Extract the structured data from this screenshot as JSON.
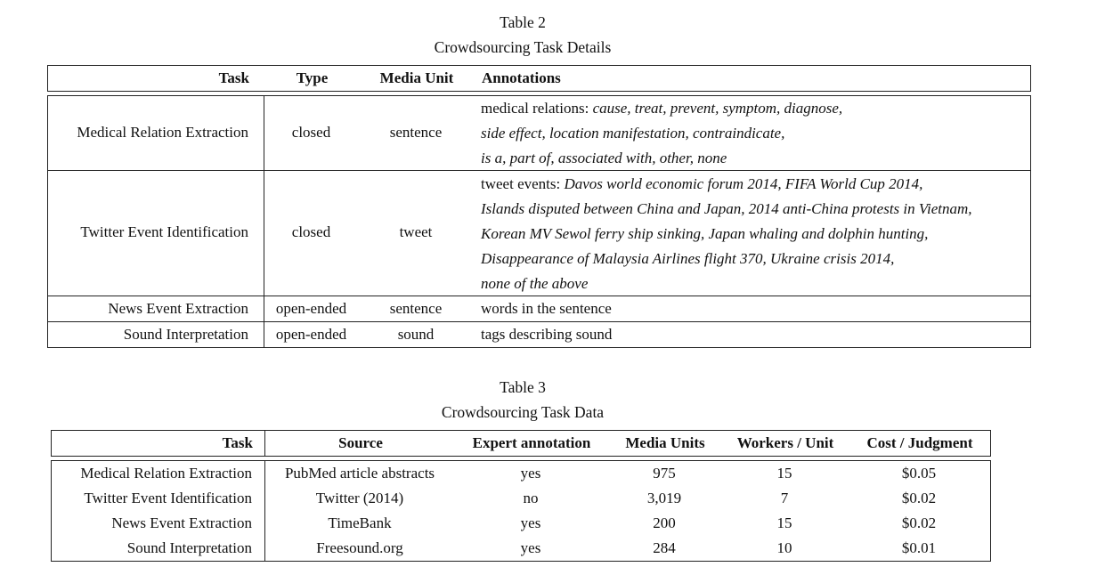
{
  "table2": {
    "caption_number": "Table 2",
    "caption_title": "Crowdsourcing Task Details",
    "headers": [
      "Task",
      "Type",
      "Media Unit",
      "Annotations"
    ],
    "rows": [
      {
        "task": "Medical Relation Extraction",
        "type": "closed",
        "media_unit": "sentence",
        "annotation_lines": [
          [
            {
              "t": "medical relations: ",
              "i": false
            },
            {
              "t": "cause, treat, prevent, symptom, diagnose,",
              "i": true
            }
          ],
          [
            {
              "t": "side effect, location manifestation, contraindicate,",
              "i": true
            }
          ],
          [
            {
              "t": "is a, part of, associated with, other, none",
              "i": true
            }
          ]
        ]
      },
      {
        "task": "Twitter Event Identification",
        "type": "closed",
        "media_unit": "tweet",
        "annotation_lines": [
          [
            {
              "t": "tweet events: ",
              "i": false
            },
            {
              "t": "Davos world economic forum 2014, FIFA World Cup 2014,",
              "i": true
            }
          ],
          [
            {
              "t": "Islands disputed between China and Japan, 2014 anti-China protests in Vietnam,",
              "i": true
            }
          ],
          [
            {
              "t": "Korean MV Sewol ferry ship sinking, Japan whaling and dolphin hunting,",
              "i": true
            }
          ],
          [
            {
              "t": "Disappearance of Malaysia Airlines flight 370, Ukraine crisis 2014,",
              "i": true
            }
          ],
          [
            {
              "t": "none of the above",
              "i": true
            }
          ]
        ]
      },
      {
        "task": "News Event Extraction",
        "type": "open-ended",
        "media_unit": "sentence",
        "annotation_lines": [
          [
            {
              "t": "words in the sentence",
              "i": false
            }
          ]
        ]
      },
      {
        "task": "Sound Interpretation",
        "type": "open-ended",
        "media_unit": "sound",
        "annotation_lines": [
          [
            {
              "t": "tags describing sound",
              "i": false
            }
          ]
        ]
      }
    ]
  },
  "table3": {
    "caption_number": "Table 3",
    "caption_title": "Crowdsourcing Task Data",
    "headers": [
      "Task",
      "Source",
      "Expert annotation",
      "Media Units",
      "Workers / Unit",
      "Cost / Judgment"
    ],
    "rows": [
      [
        "Medical Relation Extraction",
        "PubMed article abstracts",
        "yes",
        "975",
        "15",
        "$0.05"
      ],
      [
        "Twitter Event Identification",
        "Twitter (2014)",
        "no",
        "3,019",
        "7",
        "$0.02"
      ],
      [
        "News Event Extraction",
        "TimeBank",
        "yes",
        "200",
        "15",
        "$0.02"
      ],
      [
        "Sound Interpretation",
        "Freesound.org",
        "yes",
        "284",
        "10",
        "$0.01"
      ]
    ]
  }
}
